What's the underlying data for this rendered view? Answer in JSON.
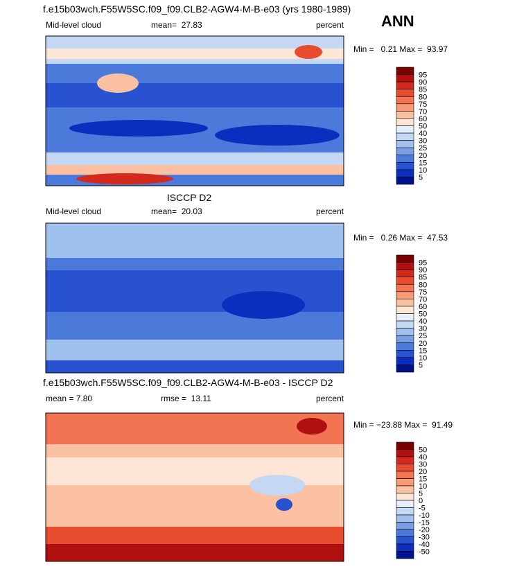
{
  "title": "ANN",
  "panels": [
    {
      "header": "f.e15b03wch.F55W5SC.f09_f09.CLB2-AGW4-M-B-e03 (yrs 1980-1989)",
      "left": "Mid-level cloud",
      "center": "mean=  27.83",
      "right": "percent",
      "minmax": "Min =   0.21 Max =  93.97",
      "colorbar": [
        95,
        90,
        85,
        80,
        75,
        70,
        60,
        50,
        40,
        30,
        25,
        20,
        15,
        10,
        5
      ]
    },
    {
      "header": "ISCCP D2",
      "left": "Mid-level cloud",
      "center": "mean=  20.03",
      "right": "percent",
      "minmax": "Min =   0.26 Max =  47.53",
      "colorbar": [
        95,
        90,
        85,
        80,
        75,
        70,
        60,
        50,
        40,
        30,
        25,
        20,
        15,
        10,
        5
      ]
    },
    {
      "header": "f.e15b03wch.F55W5SC.f09_f09.CLB2-AGW4-M-B-e03 - ISCCP D2",
      "left": "mean =   7.80",
      "center": "rmse =  13.11",
      "right": "percent",
      "minmax": "Min = −23.88 Max =  91.49",
      "colorbar": [
        50,
        40,
        30,
        20,
        15,
        10,
        5,
        0,
        -5,
        -10,
        -15,
        -20,
        -30,
        -40,
        -50
      ]
    }
  ],
  "colors": [
    "#7a0000",
    "#b01010",
    "#d42a1e",
    "#e84c2e",
    "#f27452",
    "#f89a78",
    "#fcc1a2",
    "#fde6d6",
    "#e6eefb",
    "#c4d8f4",
    "#a0c0ee",
    "#789fe4",
    "#4c7adb",
    "#2852cf",
    "#0c2ebe",
    "#00128a"
  ]
}
